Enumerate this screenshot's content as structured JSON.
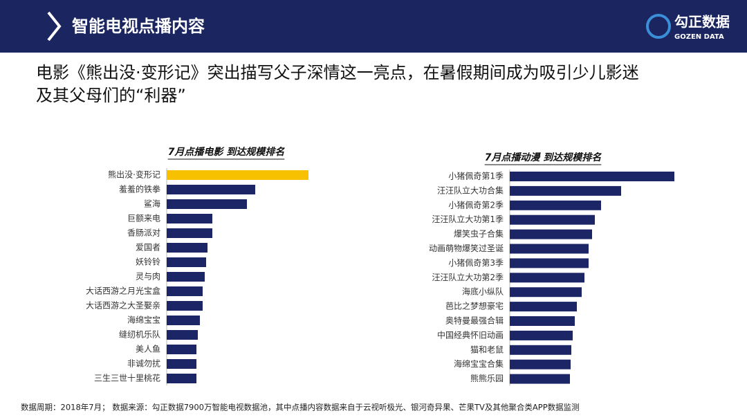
{
  "header": {
    "title": "智能电视点播内容",
    "logo_name": "勾正数据",
    "logo_sub": "GOZEN DATA"
  },
  "headline": [
    "电影《熊出没·变形记》突出描写父子深情这一亮点，在暑假期间成为吸引少儿影迷",
    "及其父母们的“利器”"
  ],
  "chart_data": [
    {
      "type": "bar",
      "orientation": "horizontal",
      "title": "7月点播电影 到达规模排名",
      "categories": [
        "熊出没·变形记",
        "羞羞的铁拳",
        "鲨海",
        "巨额来电",
        "香肠派对",
        "爱国者",
        "妖铃铃",
        "灵与肉",
        "大话西游之月光宝盒",
        "大话西游之大圣娶亲",
        "海绵宝宝",
        "缝纫机乐队",
        "美人鱼",
        "非诚勿扰",
        "三生三世十里桃花"
      ],
      "values": [
        205,
        128,
        116,
        66,
        66,
        59,
        57,
        55,
        52,
        52,
        48,
        45,
        43,
        43,
        43
      ],
      "colors": [
        "#f7c100",
        "#1c2566",
        "#1c2566",
        "#1c2566",
        "#1c2566",
        "#1c2566",
        "#1c2566",
        "#1c2566",
        "#1c2566",
        "#1c2566",
        "#1c2566",
        "#1c2566",
        "#1c2566",
        "#1c2566",
        "#1c2566"
      ]
    },
    {
      "type": "bar",
      "orientation": "horizontal",
      "title": "7月点播动漫 到达规模排名",
      "categories": [
        "小猪佩奇第1季",
        "汪汪队立大功合集",
        "小猪佩奇第2季",
        "汪汪队立大功第1季",
        "爆笑虫子合集",
        "动画萌物爆笑过圣诞",
        "小猪佩奇第3季",
        "汪汪队立大功第2季",
        "海底小纵队",
        "芭比之梦想豪宅",
        "奥特曼最强合辑",
        "中国经典怀旧动画",
        "猫和老鼠",
        "海绵宝宝合集",
        "熊熊乐园"
      ],
      "values": [
        238,
        161,
        132,
        123,
        119,
        114,
        114,
        108,
        104,
        97,
        94,
        91,
        89,
        88,
        87
      ],
      "colors": [
        "#1c2566",
        "#1c2566",
        "#1c2566",
        "#1c2566",
        "#1c2566",
        "#1c2566",
        "#1c2566",
        "#1c2566",
        "#1c2566",
        "#1c2566",
        "#1c2566",
        "#1c2566",
        "#1c2566",
        "#1c2566",
        "#1c2566"
      ]
    }
  ],
  "footer": "数据周期：2018年7月；  数据来源：勾正数据7900万智能电视数据池，其中点播内容数据来自于云视听极光、银河奇异果、芒果TV及其他聚合类APP数据监测"
}
